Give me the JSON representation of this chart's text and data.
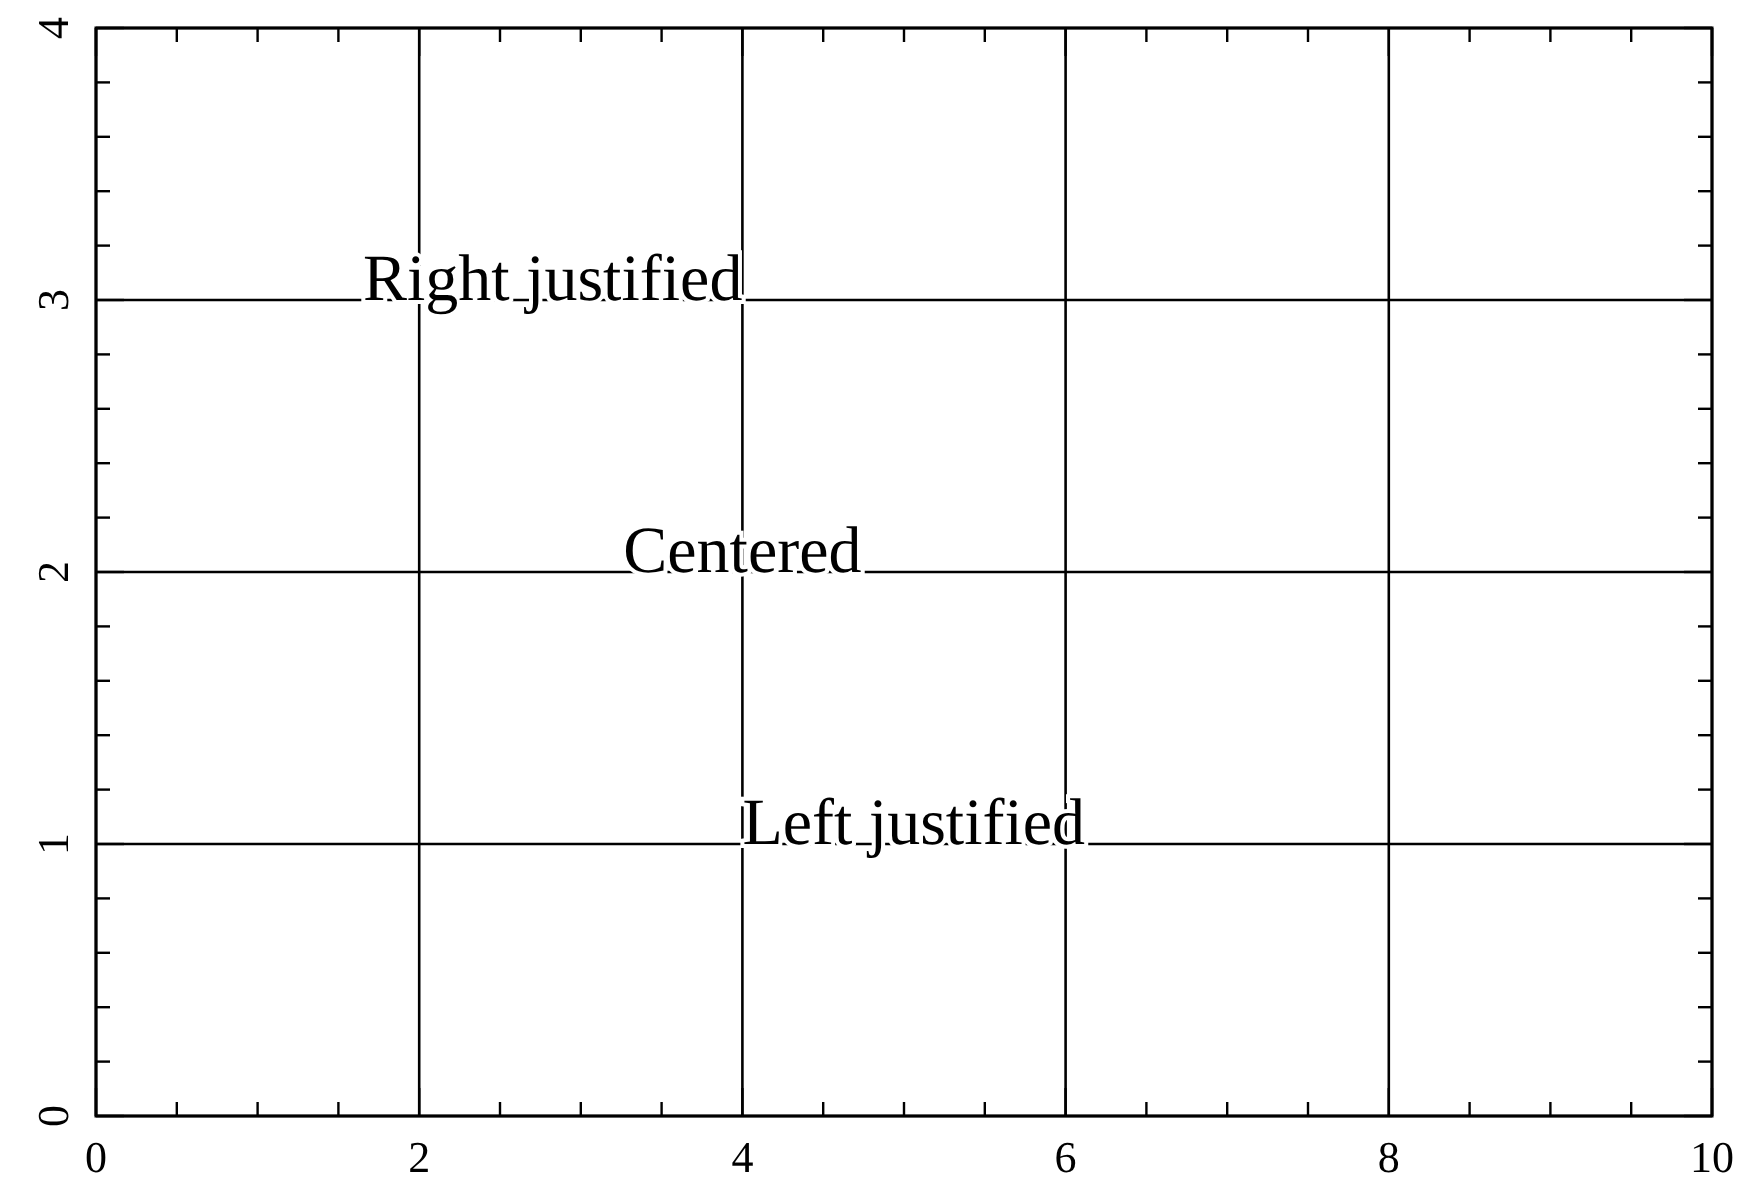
{
  "chart_data": {
    "type": "scatter",
    "xlim": [
      0,
      10
    ],
    "ylim": [
      0,
      4
    ],
    "xticks": [
      0,
      {
        "value": 0.5,
        "label": null
      },
      {
        "value": 1,
        "label": null
      },
      {
        "value": 1.5,
        "label": null
      },
      2,
      {
        "value": 2.5,
        "label": null
      },
      {
        "value": 3,
        "label": null
      },
      {
        "value": 3.5,
        "label": null
      },
      4,
      {
        "value": 4.5,
        "label": null
      },
      {
        "value": 5,
        "label": null
      },
      {
        "value": 5.5,
        "label": null
      },
      6,
      {
        "value": 6.5,
        "label": null
      },
      {
        "value": 7,
        "label": null
      },
      {
        "value": 7.5,
        "label": null
      },
      8,
      {
        "value": 8.5,
        "label": null
      },
      {
        "value": 9,
        "label": null
      },
      {
        "value": 9.5,
        "label": null
      },
      10
    ],
    "yticks": [
      0,
      {
        "value": 0.2,
        "label": null
      },
      {
        "value": 0.4,
        "label": null
      },
      {
        "value": 0.6,
        "label": null
      },
      {
        "value": 0.8,
        "label": null
      },
      1,
      {
        "value": 1.2,
        "label": null
      },
      {
        "value": 1.4,
        "label": null
      },
      {
        "value": 1.6,
        "label": null
      },
      {
        "value": 1.8,
        "label": null
      },
      2,
      {
        "value": 2.2,
        "label": null
      },
      {
        "value": 2.4,
        "label": null
      },
      {
        "value": 2.6,
        "label": null
      },
      {
        "value": 2.8,
        "label": null
      },
      3,
      {
        "value": 3.2,
        "label": null
      },
      {
        "value": 3.4,
        "label": null
      },
      {
        "value": 3.6,
        "label": null
      },
      {
        "value": 3.8,
        "label": null
      },
      4
    ],
    "grid": true,
    "annotations": [
      "Right justified",
      "Centered",
      "Left justified"
    ]
  }
}
